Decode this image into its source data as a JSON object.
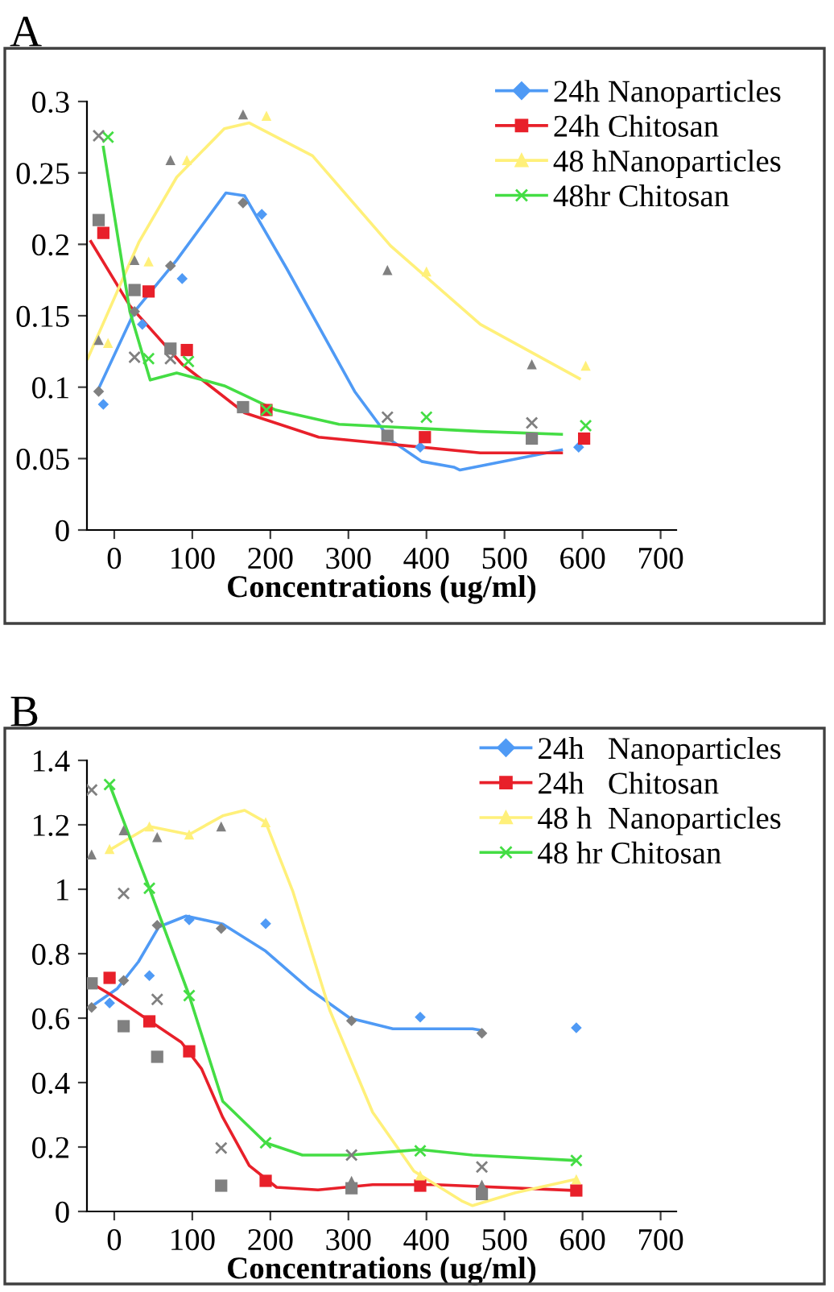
{
  "chart_data": [
    {
      "type": "scatter",
      "title": "A",
      "xlabel": "Concentrations (ug/ml)",
      "xlim": [
        -35,
        720
      ],
      "xticks": [
        0,
        100,
        200,
        300,
        400,
        500,
        600,
        700
      ],
      "ylim": [
        0,
        0.3
      ],
      "yticks": [
        0,
        0.05,
        0.1,
        0.15,
        0.2,
        0.25,
        0.3
      ],
      "legend": "top right",
      "series": [
        {
          "name": "24h Nanoparticles",
          "type": "scatter",
          "marker": "diamond",
          "color": "#4f9af5",
          "x": [
            -14,
            36,
            87,
            189,
            392,
            595
          ],
          "values": [
            0.088,
            0.144,
            0.176,
            0.221,
            0.058,
            0.058
          ]
        },
        {
          "name": "24h Chitosan",
          "type": "scatter",
          "marker": "square",
          "color": "#e8202a",
          "x": [
            -14,
            44,
            93,
            195,
            398,
            602
          ],
          "values": [
            0.208,
            0.167,
            0.126,
            0.084,
            0.065,
            0.064
          ]
        },
        {
          "name": "48 hNanoparticles",
          "type": "scatter",
          "marker": "triangle",
          "color": "#fff07a",
          "x": [
            -8,
            44,
            93,
            195,
            400,
            604
          ],
          "values": [
            0.131,
            0.188,
            0.259,
            0.29,
            0.181,
            0.115
          ]
        },
        {
          "name": "48hr Chitosan",
          "type": "scatter",
          "marker": "cross",
          "color": "#44dd44",
          "x": [
            -8,
            44,
            95,
            195,
            400,
            604
          ],
          "values": [
            0.275,
            0.12,
            0.118,
            0.084,
            0.079,
            0.073
          ]
        },
        {
          "marker": "diamond",
          "color": "#808080",
          "x": [
            -20,
            26,
            72,
            165
          ],
          "values": [
            0.097,
            0.153,
            0.185,
            0.229
          ]
        },
        {
          "type": "scatter",
          "marker": "square",
          "color": "#808080",
          "x": [
            -20,
            26,
            72,
            165,
            350,
            535
          ],
          "values": [
            0.217,
            0.168,
            0.127,
            0.086,
            0.066,
            0.064
          ]
        },
        {
          "type": "scatter",
          "marker": "triangle",
          "color": "#808080",
          "x": [
            -20,
            26,
            72,
            165,
            350,
            535
          ],
          "values": [
            0.133,
            0.189,
            0.259,
            0.291,
            0.182,
            0.116
          ]
        },
        {
          "marker": "cross",
          "color": "#808080",
          "x": [
            -20,
            26,
            72,
            350,
            535
          ],
          "values": [
            0.276,
            0.121,
            0.12,
            0.079,
            0.075
          ]
        },
        {
          "type": "line",
          "color": "#4f9af5",
          "x": [
            -20,
            26,
            80,
            143,
            167,
            221,
            308,
            354,
            394,
            435,
            443,
            573
          ],
          "values": [
            0.099,
            0.153,
            0.189,
            0.236,
            0.234,
            0.183,
            0.097,
            0.063,
            0.048,
            0.044,
            0.042,
            0.056
          ]
        },
        {
          "type": "line",
          "color": "#e8202a",
          "x": [
            -30,
            20,
            87,
            167,
            262,
            469,
            573
          ],
          "values": [
            0.202,
            0.157,
            0.116,
            0.082,
            0.065,
            0.054,
            0.054
          ]
        },
        {
          "type": "line",
          "color": "#fff07a",
          "x": [
            -34,
            32,
            80,
            141,
            173,
            254,
            354,
            469,
            596
          ],
          "values": [
            0.12,
            0.202,
            0.247,
            0.281,
            0.285,
            0.262,
            0.199,
            0.144,
            0.106
          ]
        },
        {
          "type": "line",
          "color": "#44dd44",
          "x": [
            -14,
            20,
            46,
            80,
            141,
            207,
            288,
            469,
            573
          ],
          "values": [
            0.268,
            0.153,
            0.105,
            0.11,
            0.101,
            0.084,
            0.074,
            0.069,
            0.067
          ]
        }
      ]
    },
    {
      "type": "scatter",
      "title": "B",
      "xlabel": "Concentrations (ug/ml)",
      "xlim": [
        -35,
        720
      ],
      "xticks": [
        0,
        100,
        200,
        300,
        400,
        500,
        600,
        700
      ],
      "ylim": [
        0,
        1.4
      ],
      "yticks": [
        0,
        0.2,
        0.4,
        0.6,
        0.8,
        1,
        1.2,
        1.4
      ],
      "legend": "top right",
      "series": [
        {
          "name": "24h   Nanoparticles",
          "type": "scatter",
          "marker": "diamond",
          "color": "#4f9af5",
          "x": [
            -6,
            45,
            96,
            194,
            392,
            592
          ],
          "values": [
            0.647,
            0.732,
            0.905,
            0.893,
            0.603,
            0.57
          ]
        },
        {
          "name": "24h   Chitosan",
          "type": "scatter",
          "marker": "square",
          "color": "#e8202a",
          "x": [
            -6,
            45,
            96,
            194,
            392,
            592
          ],
          "values": [
            0.725,
            0.59,
            0.497,
            0.095,
            0.08,
            0.065
          ]
        },
        {
          "name": "48 h  Nanoparticles",
          "type": "scatter",
          "marker": "triangle",
          "color": "#fff07a",
          "x": [
            -6,
            45,
            96,
            194,
            392,
            592
          ],
          "values": [
            1.125,
            1.195,
            1.17,
            1.208,
            0.112,
            0.1
          ]
        },
        {
          "name": "48 hr Chitosan",
          "type": "scatter",
          "marker": "cross",
          "color": "#44dd44",
          "x": [
            -6,
            45,
            96,
            194,
            392,
            592
          ],
          "values": [
            1.325,
            1.003,
            0.67,
            0.213,
            0.188,
            0.158
          ]
        },
        {
          "type": "scatter",
          "marker": "diamond",
          "color": "#808080",
          "x": [
            -29,
            12,
            55,
            137,
            304,
            471
          ],
          "values": [
            0.633,
            0.717,
            0.888,
            0.878,
            0.592,
            0.553
          ]
        },
        {
          "type": "scatter",
          "marker": "square",
          "color": "#808080",
          "x": [
            -29,
            12,
            55,
            137,
            304,
            471
          ],
          "values": [
            0.708,
            0.575,
            0.48,
            0.08,
            0.072,
            0.054
          ]
        },
        {
          "type": "scatter",
          "marker": "triangle",
          "color": "#808080",
          "x": [
            -29,
            12,
            55,
            137,
            304,
            471
          ],
          "values": [
            1.108,
            1.183,
            1.162,
            1.195,
            0.095,
            0.083
          ]
        },
        {
          "type": "scatter",
          "marker": "cross",
          "color": "#808080",
          "x": [
            -29,
            12,
            55,
            137,
            304,
            471
          ],
          "values": [
            1.308,
            0.987,
            0.658,
            0.197,
            0.175,
            0.138
          ]
        },
        {
          "type": "line",
          "color": "#4f9af5",
          "x": [
            -31,
            4,
            31,
            57,
            92,
            139,
            194,
            249,
            302,
            357,
            459,
            471
          ],
          "values": [
            0.633,
            0.692,
            0.775,
            0.883,
            0.917,
            0.892,
            0.808,
            0.692,
            0.6,
            0.567,
            0.567,
            0.562
          ]
        },
        {
          "type": "line",
          "color": "#e8202a",
          "x": [
            -29,
            -6,
            45,
            86,
            112,
            139,
            173,
            208,
            261,
            331,
            412,
            592
          ],
          "values": [
            0.708,
            0.675,
            0.592,
            0.525,
            0.442,
            0.292,
            0.142,
            0.075,
            0.067,
            0.083,
            0.083,
            0.065
          ]
        },
        {
          "type": "line",
          "color": "#fff07a",
          "x": [
            -6,
            45,
            96,
            139,
            167,
            194,
            229,
            276,
            331,
            384,
            445,
            459,
            514,
            592
          ],
          "values": [
            1.122,
            1.195,
            1.17,
            1.228,
            1.245,
            1.208,
            0.992,
            0.625,
            0.308,
            0.125,
            0.033,
            0.018,
            0.058,
            0.1
          ]
        },
        {
          "type": "line",
          "color": "#44dd44",
          "x": [
            -6,
            45,
            96,
            139,
            194,
            241,
            302,
            392,
            459,
            592
          ],
          "values": [
            1.325,
            1.003,
            0.67,
            0.342,
            0.213,
            0.175,
            0.175,
            0.192,
            0.175,
            0.158
          ]
        }
      ]
    }
  ]
}
